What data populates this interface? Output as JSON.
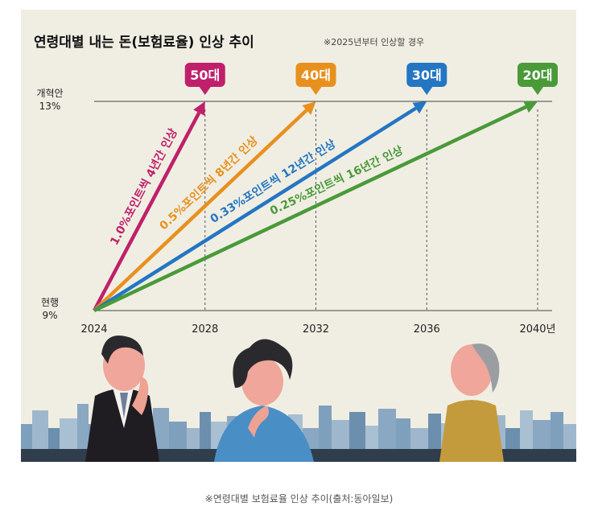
{
  "title": "연령대별 내는 돈(보험료율) 인상 추이",
  "subtitle": "※2025년부터 인상할 경우",
  "caption": "※연령대별 보험료율 인상 추이(출처:동아일보)",
  "chart_data": {
    "type": "line",
    "title": "연령대별 내는 돈(보험료율) 인상 추이",
    "subtitle": "※2025년부터 인상할 경우",
    "x_ticks": [
      "2024",
      "2028",
      "2032",
      "2036",
      "2040년"
    ],
    "x_values": [
      2024,
      2028,
      2032,
      2036,
      2040
    ],
    "xlim": [
      2024,
      2040
    ],
    "ylim": [
      9,
      13
    ],
    "y_labels": [
      {
        "line1": "개혁안",
        "line2": "13%",
        "value": 13
      },
      {
        "line1": "현행",
        "line2": "9%",
        "value": 9
      }
    ],
    "series": [
      {
        "name": "50대",
        "color": "#c0206a",
        "points": [
          [
            2024,
            9
          ],
          [
            2028,
            13
          ]
        ],
        "label": "1.0%포인트씩 4년간 인상"
      },
      {
        "name": "40대",
        "color": "#e8901e",
        "points": [
          [
            2024,
            9
          ],
          [
            2032,
            13
          ]
        ],
        "label": "0.5%포인트씩 8년간 인상"
      },
      {
        "name": "30대",
        "color": "#2476c3",
        "points": [
          [
            2024,
            9
          ],
          [
            2036,
            13
          ]
        ],
        "label": "0.33%포인트씩 12년간 인상"
      },
      {
        "name": "20대",
        "color": "#4a9a3a",
        "points": [
          [
            2024,
            9
          ],
          [
            2040,
            13
          ]
        ],
        "label": "0.25%포인트씩 16년간 인상"
      }
    ],
    "grid": false
  }
}
